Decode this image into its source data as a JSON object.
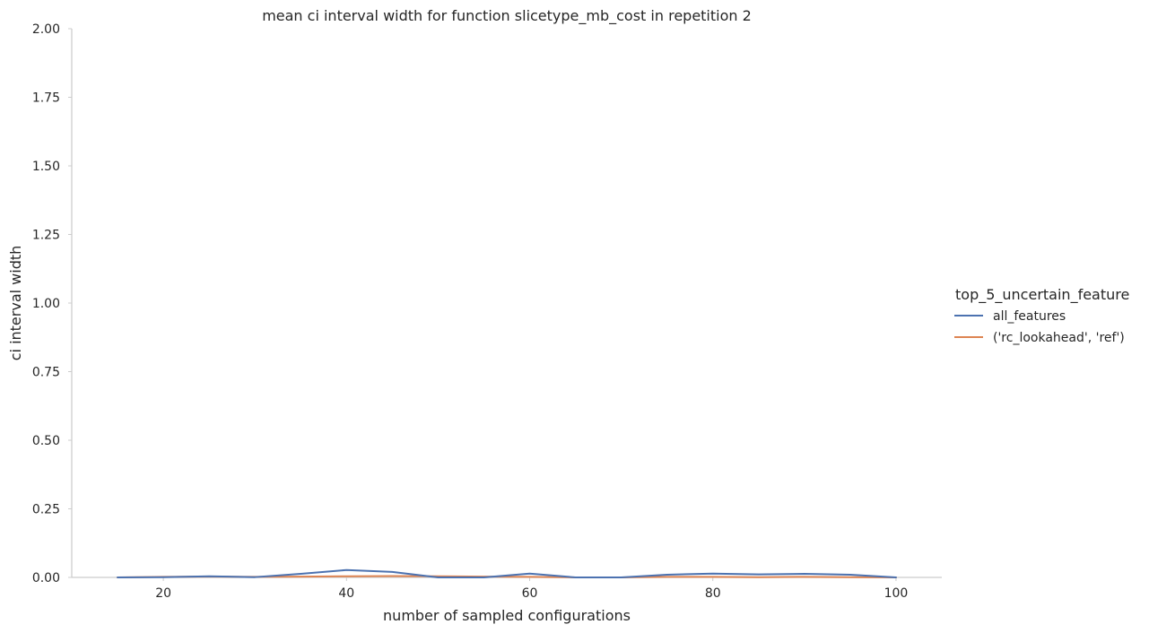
{
  "chart_data": {
    "type": "line",
    "title": "mean ci interval width for function slicetype_mb_cost in repetition 2",
    "xlabel": "number of sampled configurations",
    "ylabel": "ci interval width",
    "xlim": [
      10,
      105
    ],
    "ylim": [
      0,
      2.0
    ],
    "xticks": [
      20,
      40,
      60,
      80,
      100
    ],
    "yticks": [
      0.0,
      0.25,
      0.5,
      0.75,
      1.0,
      1.25,
      1.5,
      1.75,
      2.0
    ],
    "xtick_labels": [
      "20",
      "40",
      "60",
      "80",
      "100"
    ],
    "ytick_labels": [
      "0.00",
      "0.25",
      "0.50",
      "0.75",
      "1.00",
      "1.25",
      "1.50",
      "1.75",
      "2.00"
    ],
    "grid": false,
    "legend": {
      "title": "top_5_uncertain_feature",
      "placement": "right"
    },
    "x": [
      15,
      20,
      25,
      30,
      35,
      40,
      45,
      50,
      55,
      60,
      65,
      70,
      75,
      80,
      85,
      90,
      95,
      100
    ],
    "series": [
      {
        "name": "all_features",
        "color": "#4c72b0",
        "values": [
          0.0,
          0.001,
          0.004,
          0.001,
          0.013,
          0.027,
          0.02,
          0.0,
          0.0,
          0.014,
          0.0,
          0.0,
          0.01,
          0.014,
          0.011,
          0.013,
          0.01,
          0.0
        ]
      },
      {
        "name": "('rc_lookahead', 'ref')",
        "color": "#dd8452",
        "values": [
          0.0,
          0.002,
          0.003,
          0.002,
          0.003,
          0.004,
          0.005,
          0.004,
          0.003,
          0.002,
          0.0,
          0.0,
          0.002,
          0.002,
          0.001,
          0.002,
          0.001,
          0.0
        ]
      }
    ]
  }
}
